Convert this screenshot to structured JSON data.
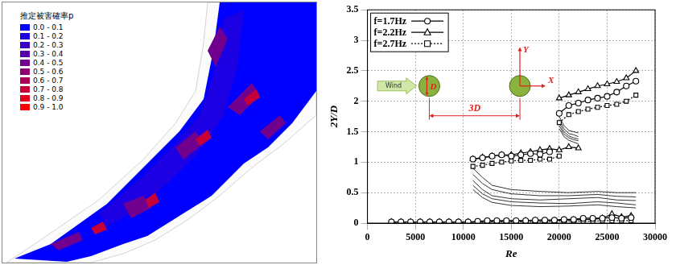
{
  "map": {
    "legend": {
      "title": "推定被害確率p",
      "labels": [
        "0.0 - 0.1",
        "0.1 - 0.2",
        "0.2 - 0.3",
        "0.3 - 0.4",
        "0.4 - 0.5",
        "0.5 - 0.6",
        "0.6 - 0.7",
        "0.7 - 0.8",
        "0.8 - 0.9",
        "0.9 - 1.0"
      ],
      "colors": [
        "#0000ff",
        "#1c00e3",
        "#3900c6",
        "#5500aa",
        "#71008e",
        "#8e0071",
        "#aa0055",
        "#c60039",
        "#e3001c",
        "#ff0000"
      ]
    }
  },
  "chart_data": {
    "type": "line",
    "x_label": "Re",
    "y_label": "2Y/D",
    "xlim": [
      0,
      30000
    ],
    "xticks": [
      0,
      5000,
      10000,
      15000,
      20000,
      25000,
      30000
    ],
    "ylim": [
      0,
      3.5
    ],
    "yticks": [
      0,
      0.5,
      1,
      1.5,
      2,
      2.5,
      3,
      3.5
    ],
    "grid": true,
    "legend": "upper left",
    "inset": {
      "wind": "Wind",
      "diameter": "D",
      "spacing": "3D",
      "x_axis": "X",
      "y_axis": "Y"
    },
    "series": [
      {
        "name": "f=1.7Hz",
        "color": "#000000",
        "marker": "circle",
        "line_style": "solid",
        "x": [
          2500,
          3500,
          4500,
          5500,
          6500,
          7500,
          8500,
          9500,
          10500,
          11500,
          12500,
          13500,
          14500,
          15500,
          16500,
          17500,
          18500,
          19500,
          20500,
          21500,
          22500,
          23500,
          24500,
          25500,
          26500,
          27500
        ],
        "values": [
          0.02,
          0.02,
          0.02,
          0.02,
          0.02,
          0.02,
          0.02,
          0.02,
          0.02,
          0.03,
          0.04,
          0.04,
          0.04,
          0.04,
          0.04,
          0.05,
          0.05,
          0.05,
          0.06,
          0.06,
          0.08,
          0.08,
          0.08,
          0.09,
          0.08,
          0.09
        ]
      },
      {
        "name": "f=1.7Hz",
        "color": "#000000",
        "marker": "circle",
        "line_style": "solid",
        "x": [
          11000,
          12000,
          13000,
          14000,
          15000,
          16000,
          17000,
          18000,
          19000
        ],
        "values": [
          1.05,
          1.07,
          1.1,
          1.12,
          1.1,
          1.12,
          1.14,
          1.13,
          1.17
        ]
      },
      {
        "name": "f=1.7Hz",
        "color": "#000000",
        "marker": "circle",
        "line_style": "solid",
        "x": [
          20000,
          21000,
          22000,
          23000,
          24000,
          25000,
          26000,
          27000,
          28000
        ],
        "values": [
          1.8,
          1.93,
          1.97,
          2.02,
          2.05,
          2.08,
          2.15,
          2.25,
          2.33
        ]
      },
      {
        "name": "f=2.2Hz",
        "color": "#000000",
        "marker": "triangle",
        "line_style": "solid",
        "x": [
          2500,
          3500,
          4500,
          5500,
          6500,
          7500,
          8500,
          9500,
          10500,
          11500,
          12500,
          13500,
          14500,
          15500,
          16500,
          17500,
          18500,
          19500,
          20500,
          21500,
          22500,
          23500,
          24500,
          25500,
          26500,
          27500
        ],
        "values": [
          0.02,
          0.02,
          0.02,
          0.02,
          0.02,
          0.02,
          0.02,
          0.02,
          0.02,
          0.02,
          0.03,
          0.03,
          0.03,
          0.03,
          0.04,
          0.04,
          0.04,
          0.04,
          0.05,
          0.05,
          0.06,
          0.06,
          0.08,
          0.15,
          0.1,
          0.12
        ]
      },
      {
        "name": "f=2.2Hz",
        "color": "#000000",
        "marker": "triangle",
        "line_style": "solid",
        "x": [
          11000,
          12000,
          13000,
          14000,
          15000,
          16000,
          17000,
          18000,
          19000,
          20000,
          21000,
          22000
        ],
        "values": [
          1.05,
          1.08,
          1.1,
          1.12,
          1.12,
          1.15,
          1.17,
          1.2,
          1.22,
          1.2,
          1.25,
          1.23
        ]
      },
      {
        "name": "f=2.2Hz",
        "color": "#000000",
        "marker": "triangle",
        "line_style": "solid",
        "x": [
          20000,
          21000,
          22000,
          23000,
          24000,
          25000,
          26000,
          27000,
          28000
        ],
        "values": [
          2.05,
          2.1,
          2.15,
          2.2,
          2.25,
          2.28,
          2.32,
          2.38,
          2.5
        ]
      },
      {
        "name": "f=2.7Hz",
        "color": "#000000",
        "marker": "square",
        "line_style": "dotted",
        "x": [
          2500,
          3500,
          4500,
          5500,
          6500,
          7500,
          8500,
          9500,
          10500,
          11500,
          12500,
          13500,
          14500,
          15500,
          16500,
          17500,
          18500,
          19500,
          20500,
          21500,
          22500,
          23500,
          24500,
          25500,
          26500,
          27500
        ],
        "values": [
          0.01,
          0.01,
          0.01,
          0.01,
          0.01,
          0.01,
          0.01,
          0.01,
          0.01,
          0.01,
          0.02,
          0.02,
          0.02,
          0.02,
          0.02,
          0.02,
          0.02,
          0.03,
          0.03,
          0.03,
          0.03,
          0.03,
          0.04,
          0.04,
          0.04,
          0.04
        ]
      },
      {
        "name": "f=2.7Hz",
        "color": "#000000",
        "marker": "square",
        "line_style": "dotted",
        "x": [
          11000,
          12000,
          13000,
          14000,
          15000,
          16000,
          17000,
          18000,
          19000,
          20000
        ],
        "values": [
          0.93,
          0.95,
          0.98,
          1.0,
          1.02,
          1.03,
          1.03,
          1.05,
          1.05,
          1.1
        ]
      },
      {
        "name": "f=2.7Hz",
        "color": "#000000",
        "marker": "square",
        "line_style": "dotted",
        "x": [
          20000,
          21000,
          22000,
          23000,
          24000,
          25000,
          26000,
          27000,
          28000
        ],
        "values": [
          1.65,
          1.78,
          1.83,
          1.87,
          1.9,
          1.93,
          1.95,
          2.0,
          2.1
        ]
      },
      {
        "color": "#000000",
        "marker": "none",
        "line_style": "solid",
        "x": [
          11000,
          12000,
          13000,
          15000,
          18000,
          21000,
          24000,
          26000,
          28000
        ],
        "values": [
          0.9,
          0.75,
          0.62,
          0.55,
          0.52,
          0.5,
          0.52,
          0.5,
          0.5
        ]
      },
      {
        "color": "#000000",
        "marker": "none",
        "line_style": "solid",
        "x": [
          11000,
          12000,
          13000,
          15000,
          18000,
          21000,
          24000,
          26000,
          28000
        ],
        "values": [
          0.8,
          0.65,
          0.55,
          0.48,
          0.45,
          0.45,
          0.47,
          0.44,
          0.43
        ]
      },
      {
        "color": "#000000",
        "marker": "none",
        "line_style": "solid",
        "x": [
          11000,
          12000,
          13000,
          15000,
          18000,
          21000,
          24000,
          26000,
          28000
        ],
        "values": [
          0.7,
          0.55,
          0.45,
          0.4,
          0.38,
          0.4,
          0.42,
          0.38,
          0.37
        ]
      },
      {
        "color": "#000000",
        "marker": "none",
        "line_style": "solid",
        "x": [
          11000,
          12000,
          13000,
          15000,
          18000,
          21000,
          24000,
          26000,
          28000
        ],
        "values": [
          0.62,
          0.48,
          0.4,
          0.35,
          0.33,
          0.32,
          0.35,
          0.33,
          0.3
        ]
      },
      {
        "color": "#000000",
        "marker": "none",
        "line_style": "solid",
        "x": [
          11000,
          12000,
          13000,
          15000,
          18000,
          21000,
          24000,
          26000,
          28000
        ],
        "values": [
          0.55,
          0.42,
          0.34,
          0.29,
          0.27,
          0.28,
          0.3,
          0.27,
          0.25
        ]
      },
      {
        "color": "#000000",
        "marker": "none",
        "line_style": "solid",
        "x": [
          20000,
          20500,
          21000,
          21500,
          22000
        ],
        "values": [
          1.75,
          1.6,
          1.52,
          1.5,
          1.48
        ]
      },
      {
        "color": "#000000",
        "marker": "none",
        "line_style": "solid",
        "x": [
          20000,
          20500,
          21000,
          21500,
          22000
        ],
        "values": [
          1.7,
          1.55,
          1.47,
          1.45,
          1.42
        ]
      },
      {
        "color": "#000000",
        "marker": "none",
        "line_style": "solid",
        "x": [
          20000,
          20500,
          21000,
          21500,
          22000
        ],
        "values": [
          1.65,
          1.5,
          1.43,
          1.4,
          1.38
        ]
      },
      {
        "color": "#000000",
        "marker": "none",
        "line_style": "solid",
        "x": [
          20000,
          20500,
          21000,
          21500,
          22000
        ],
        "values": [
          1.6,
          1.46,
          1.4,
          1.37,
          1.35
        ]
      },
      {
        "color": "#000000",
        "marker": "none",
        "line_style": "solid",
        "x": [
          20000,
          20500,
          21000,
          21500,
          22000
        ],
        "values": [
          1.55,
          1.42,
          1.36,
          1.33,
          1.3
        ]
      }
    ]
  }
}
